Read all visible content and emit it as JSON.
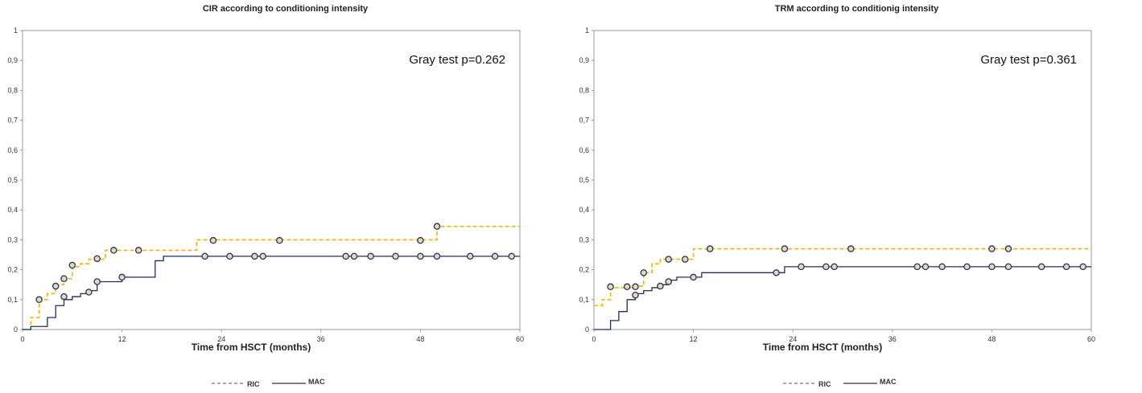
{
  "chart_data": [
    {
      "type": "line",
      "title": "CIR according to conditioning  intensity",
      "xlabel": "Time from HSCT (months)",
      "ylabel": "",
      "xlim": [
        0,
        60
      ],
      "ylim": [
        0,
        1
      ],
      "x_ticks": [
        "0",
        "12",
        "24",
        "36",
        "48",
        "60"
      ],
      "y_ticks": [
        "0",
        "0,1",
        "0,2",
        "0,3",
        "0,4",
        "0,5",
        "0,6",
        "0,7",
        "0,8",
        "0,9",
        "1"
      ],
      "annotation": "Gray test p=0.262",
      "legend_position": "bottom",
      "series": [
        {
          "name": "RIC",
          "style": "dashed",
          "color": "#f5b400",
          "steps": [
            [
              0,
              0
            ],
            [
              1,
              0.04
            ],
            [
              2,
              0.1
            ],
            [
              3,
              0.12
            ],
            [
              4,
              0.15
            ],
            [
              5,
              0.17
            ],
            [
              6,
              0.21
            ],
            [
              7,
              0.22
            ],
            [
              8,
              0.235
            ],
            [
              10,
              0.265
            ],
            [
              21,
              0.3
            ],
            [
              50,
              0.345
            ],
            [
              60,
              0.345
            ]
          ],
          "censored": [
            [
              2,
              0.1
            ],
            [
              4,
              0.145
            ],
            [
              5,
              0.17
            ],
            [
              6,
              0.215
            ],
            [
              9,
              0.237
            ],
            [
              11,
              0.265
            ],
            [
              14,
              0.265
            ],
            [
              23,
              0.298
            ],
            [
              31,
              0.298
            ],
            [
              48,
              0.298
            ],
            [
              50,
              0.345
            ]
          ]
        },
        {
          "name": "MAC",
          "style": "solid",
          "color": "#1f2d5c",
          "steps": [
            [
              0,
              0
            ],
            [
              1,
              0.01
            ],
            [
              3,
              0.04
            ],
            [
              4,
              0.08
            ],
            [
              5,
              0.1
            ],
            [
              6,
              0.11
            ],
            [
              7,
              0.12
            ],
            [
              8,
              0.13
            ],
            [
              9,
              0.16
            ],
            [
              12,
              0.175
            ],
            [
              16,
              0.23
            ],
            [
              17,
              0.245
            ],
            [
              60,
              0.245
            ]
          ],
          "censored": [
            [
              5,
              0.11
            ],
            [
              8,
              0.125
            ],
            [
              9,
              0.16
            ],
            [
              12,
              0.175
            ],
            [
              22,
              0.245
            ],
            [
              25,
              0.245
            ],
            [
              28,
              0.245
            ],
            [
              29,
              0.245
            ],
            [
              39,
              0.245
            ],
            [
              40,
              0.245
            ],
            [
              42,
              0.245
            ],
            [
              45,
              0.245
            ],
            [
              48,
              0.245
            ],
            [
              50,
              0.245
            ],
            [
              54,
              0.245
            ],
            [
              57,
              0.245
            ],
            [
              59,
              0.245
            ]
          ]
        }
      ]
    },
    {
      "type": "line",
      "title": "TRM according to conditionig  intensity",
      "xlabel": "Time from HSCT (months)",
      "ylabel": "",
      "xlim": [
        0,
        60
      ],
      "ylim": [
        0,
        1
      ],
      "x_ticks": [
        "0",
        "12",
        "24",
        "36",
        "48",
        "60"
      ],
      "y_ticks": [
        "0",
        "0,1",
        "0,2",
        "0,3",
        "0,4",
        "0,5",
        "0,6",
        "0,7",
        "0,8",
        "0,9",
        "1"
      ],
      "annotation": "Gray test p=0.361",
      "legend_position": "bottom",
      "series": [
        {
          "name": "RIC",
          "style": "dashed",
          "color": "#f5b400",
          "steps": [
            [
              0,
              0.08
            ],
            [
              1,
              0.1
            ],
            [
              2,
              0.14
            ],
            [
              5,
              0.145
            ],
            [
              6,
              0.19
            ],
            [
              7,
              0.22
            ],
            [
              8,
              0.235
            ],
            [
              12,
              0.27
            ],
            [
              60,
              0.27
            ]
          ],
          "censored": [
            [
              2,
              0.143
            ],
            [
              4,
              0.143
            ],
            [
              5,
              0.143
            ],
            [
              6,
              0.19
            ],
            [
              9,
              0.235
            ],
            [
              11,
              0.235
            ],
            [
              14,
              0.27
            ],
            [
              23,
              0.27
            ],
            [
              31,
              0.27
            ],
            [
              48,
              0.27
            ],
            [
              50,
              0.27
            ]
          ]
        },
        {
          "name": "MAC",
          "style": "solid",
          "color": "#1f2d5c",
          "steps": [
            [
              0,
              0
            ],
            [
              2,
              0.03
            ],
            [
              3,
              0.06
            ],
            [
              4,
              0.1
            ],
            [
              5,
              0.12
            ],
            [
              6,
              0.13
            ],
            [
              7,
              0.14
            ],
            [
              8,
              0.15
            ],
            [
              9,
              0.165
            ],
            [
              10,
              0.175
            ],
            [
              13,
              0.19
            ],
            [
              23,
              0.21
            ],
            [
              60,
              0.21
            ]
          ],
          "censored": [
            [
              5,
              0.115
            ],
            [
              8,
              0.145
            ],
            [
              9,
              0.16
            ],
            [
              12,
              0.175
            ],
            [
              22,
              0.19
            ],
            [
              25,
              0.21
            ],
            [
              28,
              0.21
            ],
            [
              29,
              0.21
            ],
            [
              39,
              0.21
            ],
            [
              40,
              0.21
            ],
            [
              42,
              0.21
            ],
            [
              45,
              0.21
            ],
            [
              48,
              0.21
            ],
            [
              50,
              0.21
            ],
            [
              54,
              0.21
            ],
            [
              57,
              0.21
            ],
            [
              59,
              0.21
            ]
          ]
        }
      ]
    }
  ]
}
